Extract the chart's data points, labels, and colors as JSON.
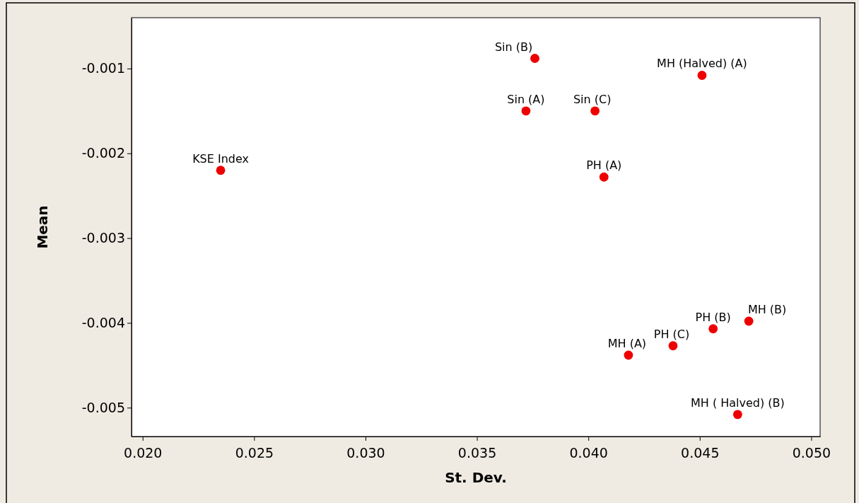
{
  "chart_data": {
    "type": "scatter",
    "xlabel": "St. Dev.",
    "ylabel": "Mean",
    "x": [
      0.0235,
      0.0376,
      0.0372,
      0.0403,
      0.0451,
      0.0407,
      0.0472,
      0.0456,
      0.0438,
      0.0418,
      0.0467
    ],
    "series": [
      {
        "color": "#ee0000",
        "values": [
          -0.0022,
          -0.00088,
          -0.0015,
          -0.0015,
          -0.00108,
          -0.00228,
          -0.00398,
          -0.00407,
          -0.00427,
          -0.00438,
          -0.00508
        ]
      }
    ],
    "marker": "circle",
    "grid": false,
    "xlim": [
      0.0195,
      0.0504
    ],
    "ylim": [
      -0.00534,
      -0.0004
    ],
    "xticks": [
      {
        "value": 0.02,
        "label": "0.020"
      },
      {
        "value": 0.025,
        "label": "0.025"
      },
      {
        "value": 0.03,
        "label": "0.030"
      },
      {
        "value": 0.035,
        "label": "0.035"
      },
      {
        "value": 0.04,
        "label": "0.040"
      },
      {
        "value": 0.045,
        "label": "0.045"
      },
      {
        "value": 0.05,
        "label": "0.050"
      }
    ],
    "yticks": [
      {
        "value": -0.005,
        "label": "-0.005"
      },
      {
        "value": -0.004,
        "label": "-0.004"
      },
      {
        "value": -0.003,
        "label": "-0.003"
      },
      {
        "value": -0.002,
        "label": "-0.002"
      },
      {
        "value": -0.001,
        "label": "-0.001"
      }
    ],
    "annotations": [
      {
        "text": "KSE Index",
        "x": 0.0235,
        "y": -0.0022
      },
      {
        "text": "Sin (B)",
        "x": 0.0376,
        "y": -0.00088
      },
      {
        "text": "Sin (A)",
        "x": 0.0372,
        "y": -0.0015
      },
      {
        "text": "Sin (C)",
        "x": 0.0403,
        "y": -0.0015
      },
      {
        "text": "MH (Halved) (A)",
        "x": 0.0451,
        "y": -0.00108
      },
      {
        "text": "PH (A)",
        "x": 0.0407,
        "y": -0.00228
      },
      {
        "text": "MH (B)",
        "x": 0.0472,
        "y": -0.00398
      },
      {
        "text": "PH (B)",
        "x": 0.0456,
        "y": -0.00407
      },
      {
        "text": "PH (C)",
        "x": 0.0438,
        "y": -0.00427
      },
      {
        "text": "MH (A)",
        "x": 0.0418,
        "y": -0.00438
      },
      {
        "text": "MH ( Halved) (B)",
        "x": 0.0467,
        "y": -0.00508
      }
    ]
  }
}
